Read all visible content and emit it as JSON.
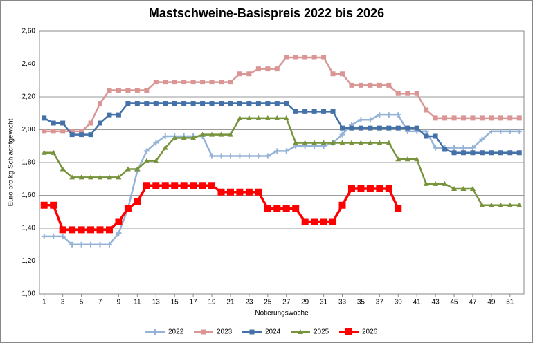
{
  "chart_data": {
    "type": "line",
    "title": "Mastschweine-Basispreis 2022 bis 2026",
    "y_label": "Euro pro kg Schlachtgewicht",
    "x_label": "Notierungswoche",
    "x": [
      1,
      2,
      3,
      4,
      5,
      6,
      7,
      8,
      9,
      10,
      11,
      12,
      13,
      14,
      15,
      16,
      17,
      18,
      19,
      20,
      21,
      22,
      23,
      24,
      25,
      26,
      27,
      28,
      29,
      30,
      31,
      32,
      33,
      34,
      35,
      36,
      37,
      38,
      39,
      40,
      41,
      42,
      43,
      44,
      45,
      46,
      47,
      48,
      49,
      50,
      51,
      52
    ],
    "xlim": [
      0.5,
      52.5
    ],
    "xticks": [
      1,
      3,
      5,
      7,
      9,
      11,
      13,
      15,
      17,
      19,
      21,
      23,
      25,
      27,
      29,
      31,
      33,
      35,
      37,
      39,
      41,
      43,
      45,
      47,
      49,
      51
    ],
    "ylim": [
      1.0,
      2.6
    ],
    "yticks": [
      {
        "value": 1.0,
        "label": "1,00"
      },
      {
        "value": 1.2,
        "label": "1,20"
      },
      {
        "value": 1.4,
        "label": "1,40"
      },
      {
        "value": 1.6,
        "label": "1,60"
      },
      {
        "value": 1.8,
        "label": "1,80"
      },
      {
        "value": 2.0,
        "label": "2,00"
      },
      {
        "value": 2.2,
        "label": "2,20"
      },
      {
        "value": 2.4,
        "label": "2,40"
      },
      {
        "value": 2.6,
        "label": "2,60"
      }
    ],
    "grid": true,
    "legend": "bottom",
    "series": [
      {
        "name": "2022",
        "color": "#95B3D7",
        "marker": "plus",
        "values": [
          1.35,
          1.35,
          1.35,
          1.3,
          1.3,
          1.3,
          1.3,
          1.3,
          1.37,
          1.52,
          1.75,
          1.87,
          1.92,
          1.96,
          1.96,
          1.96,
          1.96,
          1.96,
          1.84,
          1.84,
          1.84,
          1.84,
          1.84,
          1.84,
          1.84,
          1.87,
          1.87,
          1.9,
          1.9,
          1.9,
          1.9,
          1.92,
          1.97,
          2.03,
          2.06,
          2.06,
          2.09,
          2.09,
          2.09,
          1.99,
          1.99,
          1.99,
          1.89,
          1.89,
          1.89,
          1.89,
          1.89,
          1.94,
          1.99,
          1.99,
          1.99,
          1.99
        ]
      },
      {
        "name": "2023",
        "color": "#D99694",
        "marker": "square",
        "values": [
          1.99,
          1.99,
          1.99,
          1.99,
          1.99,
          2.04,
          2.16,
          2.24,
          2.24,
          2.24,
          2.24,
          2.24,
          2.29,
          2.29,
          2.29,
          2.29,
          2.29,
          2.29,
          2.29,
          2.29,
          2.29,
          2.34,
          2.34,
          2.37,
          2.37,
          2.37,
          2.44,
          2.44,
          2.44,
          2.44,
          2.44,
          2.34,
          2.34,
          2.27,
          2.27,
          2.27,
          2.27,
          2.27,
          2.22,
          2.22,
          2.22,
          2.12,
          2.07,
          2.07,
          2.07,
          2.07,
          2.07,
          2.07,
          2.07,
          2.07,
          2.07,
          2.07
        ]
      },
      {
        "name": "2024",
        "color": "#4472A8",
        "marker": "square",
        "values": [
          2.07,
          2.04,
          2.04,
          1.97,
          1.97,
          1.97,
          2.04,
          2.09,
          2.09,
          2.16,
          2.16,
          2.16,
          2.16,
          2.16,
          2.16,
          2.16,
          2.16,
          2.16,
          2.16,
          2.16,
          2.16,
          2.16,
          2.16,
          2.16,
          2.16,
          2.16,
          2.16,
          2.11,
          2.11,
          2.11,
          2.11,
          2.11,
          2.01,
          2.01,
          2.01,
          2.01,
          2.01,
          2.01,
          2.01,
          2.01,
          2.01,
          1.96,
          1.96,
          1.88,
          1.86,
          1.86,
          1.86,
          1.86,
          1.86,
          1.86,
          1.86,
          1.86
        ]
      },
      {
        "name": "2025",
        "color": "#77933C",
        "marker": "triangle",
        "values": [
          1.86,
          1.86,
          1.76,
          1.71,
          1.71,
          1.71,
          1.71,
          1.71,
          1.71,
          1.76,
          1.76,
          1.81,
          1.81,
          1.89,
          1.95,
          1.95,
          1.95,
          1.97,
          1.97,
          1.97,
          1.97,
          2.07,
          2.07,
          2.07,
          2.07,
          2.07,
          2.07,
          1.92,
          1.92,
          1.92,
          1.92,
          1.92,
          1.92,
          1.92,
          1.92,
          1.92,
          1.92,
          1.92,
          1.82,
          1.82,
          1.82,
          1.67,
          1.67,
          1.67,
          1.64,
          1.64,
          1.64,
          1.54,
          1.54,
          1.54,
          1.54,
          1.54
        ]
      },
      {
        "name": "2026",
        "color": "#FF0000",
        "marker": "bigsquare",
        "values": [
          1.54,
          1.54,
          1.39,
          1.39,
          1.39,
          1.39,
          1.39,
          1.39,
          1.44,
          1.52,
          1.56,
          1.66,
          1.66,
          1.66,
          1.66,
          1.66,
          1.66,
          1.66,
          1.66,
          1.62,
          1.62,
          1.62,
          1.62,
          1.62,
          1.52,
          1.52,
          1.52,
          1.52,
          1.44,
          1.44,
          1.44,
          1.44,
          1.54,
          1.64,
          1.64,
          1.64,
          1.64,
          1.64,
          1.52,
          null,
          null,
          null,
          null,
          null,
          null,
          null,
          null,
          null,
          null,
          null,
          null,
          null
        ]
      }
    ]
  }
}
